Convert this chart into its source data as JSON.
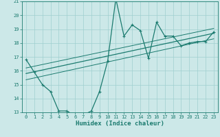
{
  "x": [
    0,
    1,
    2,
    3,
    4,
    5,
    6,
    7,
    8,
    9,
    10,
    11,
    12,
    13,
    14,
    15,
    16,
    17,
    18,
    19,
    20,
    21,
    22,
    23
  ],
  "y_main": [
    16.8,
    15.9,
    15.0,
    14.5,
    13.1,
    13.1,
    12.75,
    12.8,
    13.1,
    14.5,
    16.7,
    21.2,
    18.5,
    19.3,
    18.9,
    16.9,
    19.5,
    18.5,
    18.5,
    17.8,
    18.0,
    18.1,
    18.1,
    18.8
  ],
  "reg_line": [
    [
      0,
      15.8
    ],
    [
      23,
      18.7
    ]
  ],
  "upper_line": [
    [
      0,
      16.2
    ],
    [
      23,
      19.05
    ]
  ],
  "lower_line": [
    [
      0,
      15.35
    ],
    [
      23,
      18.3
    ]
  ],
  "line_color": "#1a7a6e",
  "bg_color": "#cce8e8",
  "grid_color": "#9fcfcf",
  "xlabel": "Humidex (Indice chaleur)",
  "xlim": [
    -0.5,
    23.5
  ],
  "ylim": [
    13,
    21
  ],
  "yticks": [
    13,
    14,
    15,
    16,
    17,
    18,
    19,
    20,
    21
  ],
  "xticks": [
    0,
    1,
    2,
    3,
    4,
    5,
    6,
    7,
    8,
    9,
    10,
    11,
    12,
    13,
    14,
    15,
    16,
    17,
    18,
    19,
    20,
    21,
    22,
    23
  ]
}
